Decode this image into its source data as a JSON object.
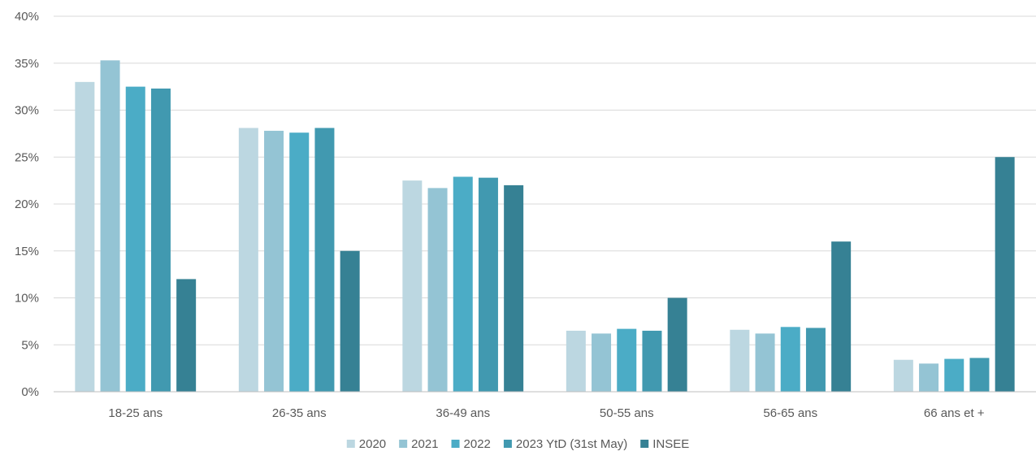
{
  "chart_data": {
    "type": "bar",
    "title": "",
    "xlabel": "",
    "ylabel": "",
    "ylim": [
      0,
      40
    ],
    "y_ticks": [
      "0%",
      "5%",
      "10%",
      "15%",
      "20%",
      "25%",
      "30%",
      "35%",
      "40%"
    ],
    "y_tick_values": [
      0,
      5,
      10,
      15,
      20,
      25,
      30,
      35,
      40
    ],
    "grid": true,
    "legend_position": "bottom",
    "categories": [
      "18-25 ans",
      "26-35 ans",
      "36-49 ans",
      "50-55 ans",
      "56-65 ans",
      "66 ans et +"
    ],
    "series": [
      {
        "name": "2020",
        "color": "#bcd7e1",
        "values": [
          33.0,
          28.1,
          22.5,
          6.5,
          6.6,
          3.4
        ]
      },
      {
        "name": "2021",
        "color": "#94c4d4",
        "values": [
          35.3,
          27.8,
          21.7,
          6.2,
          6.2,
          3.0
        ]
      },
      {
        "name": "2022",
        "color": "#4bacc6",
        "values": [
          32.5,
          27.6,
          22.9,
          6.7,
          6.9,
          3.5
        ]
      },
      {
        "name": "2023 YtD (31st May)",
        "color": "#4199b0",
        "values": [
          32.3,
          28.1,
          22.8,
          6.5,
          6.8,
          3.6
        ]
      },
      {
        "name": "INSEE",
        "color": "#368194",
        "values": [
          12.0,
          15.0,
          22.0,
          10.0,
          16.0,
          25.0
        ]
      }
    ]
  }
}
